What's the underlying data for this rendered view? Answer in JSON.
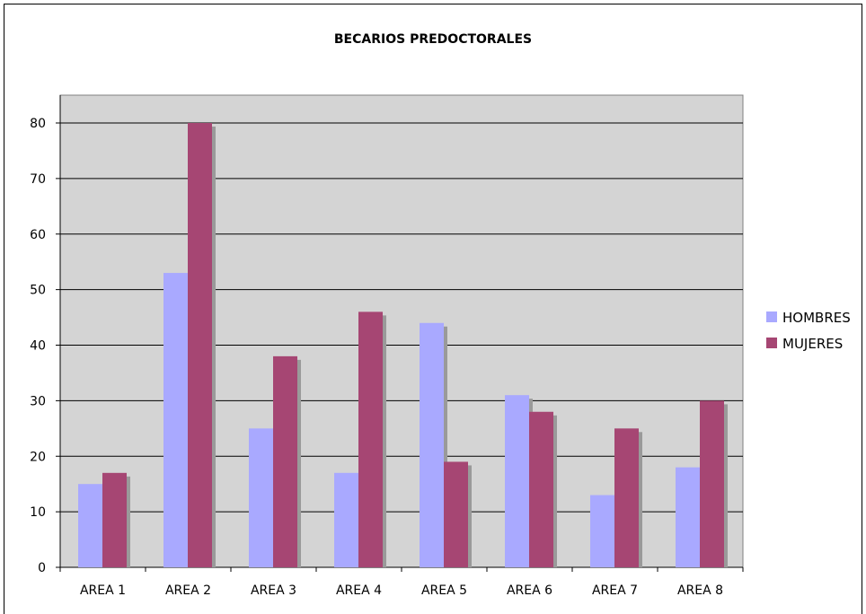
{
  "chart_data": {
    "type": "bar",
    "title": "BECARIOS PREDOCTORALES",
    "xlabel": "",
    "ylabel": "",
    "categories": [
      "AREA 1",
      "AREA 2",
      "AREA 3",
      "AREA 4",
      "AREA 5",
      "AREA 6",
      "AREA 7",
      "AREA 8"
    ],
    "series": [
      {
        "name": "HOMBRES",
        "color": "#a9a9ff",
        "values": [
          15,
          53,
          25,
          17,
          44,
          31,
          13,
          18
        ]
      },
      {
        "name": "MUJERES",
        "color": "#a64673",
        "values": [
          17,
          80,
          38,
          46,
          19,
          28,
          25,
          30
        ]
      }
    ],
    "ylim": [
      0,
      80
    ],
    "yticks": [
      0,
      10,
      20,
      30,
      40,
      50,
      60,
      70,
      80
    ],
    "grid": true,
    "legend_position": "right",
    "plot_background": "#d4d4d4"
  }
}
